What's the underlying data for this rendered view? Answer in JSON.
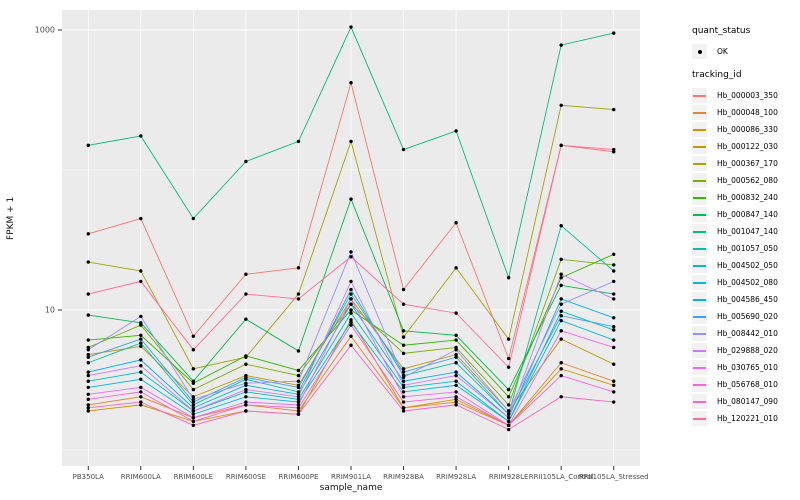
{
  "figure": {
    "background": "#FFFFFF",
    "panel_background": "#EBEBEB",
    "gridline_color": "#FFFFFF",
    "tick_text_color": "#4D4D4D",
    "point_color": "#000000"
  },
  "axes": {
    "y_title": "FPKM + 1",
    "x_title": "sample_name",
    "y_ticks": [
      10,
      1000
    ],
    "y_tick_labels": [
      "10",
      "1000"
    ],
    "y_minor_ticks": [
      1,
      100
    ]
  },
  "legend": {
    "quant_status_title": "quant_status",
    "ok_label": "OK",
    "tracking_title": "tracking_id"
  },
  "chart_data": {
    "type": "line",
    "x_type": "categorical",
    "y_scale": "log10",
    "title": "",
    "xlabel": "sample_name",
    "ylabel": "FPKM + 1",
    "ylim": [
      1,
      1100
    ],
    "grid": true,
    "legend_position": "right",
    "point_marker": {
      "shape": "circle",
      "color": "#000000",
      "label": "OK"
    },
    "categories": [
      "PB350LA",
      "RRIM600LA",
      "RRIM600LE",
      "RRIM600SE",
      "RRIM600PE",
      "RRIM901LA",
      "RRIM928BA",
      "RRIM928LA",
      "RRIM928LE",
      "RRII105LA_Control",
      "RRII105LA_Stressed"
    ],
    "series": [
      {
        "name": "Hb_000003_350",
        "color": "#F8766D",
        "values": [
          35,
          45,
          6.5,
          18,
          20,
          420,
          14,
          42,
          4.5,
          150,
          135
        ]
      },
      {
        "name": "Hb_000048_100",
        "color": "#EA8331",
        "values": [
          2.1,
          2.4,
          1.7,
          2.1,
          1.9,
          6.5,
          2.0,
          2.2,
          1.5,
          4.2,
          3.1
        ]
      },
      {
        "name": "Hb_000086_330",
        "color": "#D89000",
        "values": [
          1.9,
          2.1,
          1.6,
          1.9,
          1.8,
          8.5,
          2.0,
          2.3,
          1.5,
          3.8,
          2.9
        ]
      },
      {
        "name": "Hb_000122_030",
        "color": "#C09B00",
        "values": [
          4.8,
          5.5,
          2.4,
          3.4,
          2.9,
          12,
          3.8,
          4.8,
          1.9,
          6.2,
          4.1
        ]
      },
      {
        "name": "Hb_000367_170",
        "color": "#A3A500",
        "values": [
          22,
          19,
          3.8,
          4.6,
          13,
          160,
          6.4,
          20,
          6.2,
          290,
          270
        ]
      },
      {
        "name": "Hb_000562_080",
        "color": "#7CAE00",
        "values": [
          5.4,
          7.8,
          2.7,
          4.1,
          3.4,
          11,
          4.9,
          5.4,
          2.1,
          23,
          21
        ]
      },
      {
        "name": "Hb_000832_240",
        "color": "#39B600",
        "values": [
          6.1,
          6.6,
          3.0,
          4.7,
          3.7,
          10,
          5.6,
          6.1,
          2.4,
          17,
          25
        ]
      },
      {
        "name": "Hb_000847_140",
        "color": "#00BB4E",
        "values": [
          9.2,
          8.1,
          3.1,
          8.6,
          5.1,
          62,
          7.1,
          6.6,
          2.7,
          15,
          13
        ]
      },
      {
        "name": "Hb_001047_140",
        "color": "#00BF7D",
        "values": [
          150,
          175,
          45,
          115,
          160,
          1050,
          140,
          190,
          17,
          780,
          950
        ]
      },
      {
        "name": "Hb_001057_050",
        "color": "#00C1A3",
        "values": [
          4.2,
          5.8,
          2.1,
          3.2,
          2.6,
          14,
          3.4,
          4.2,
          1.8,
          40,
          19
        ]
      },
      {
        "name": "Hb_004502_050",
        "color": "#00BFC4",
        "values": [
          3.1,
          3.6,
          1.9,
          2.6,
          2.3,
          9.5,
          2.8,
          3.1,
          1.6,
          9.8,
          7.2
        ]
      },
      {
        "name": "Hb_004502_080",
        "color": "#00BAE0",
        "values": [
          2.8,
          3.2,
          1.8,
          2.4,
          2.2,
          8.2,
          2.6,
          2.9,
          1.6,
          8.4,
          6.1
        ]
      },
      {
        "name": "Hb_004586_450",
        "color": "#00B0F6",
        "values": [
          3.6,
          4.4,
          2.0,
          2.9,
          2.5,
          11,
          3.1,
          3.6,
          1.7,
          12,
          8.8
        ]
      },
      {
        "name": "Hb_005690_020",
        "color": "#35A2FF",
        "values": [
          4.6,
          6.2,
          2.2,
          3.3,
          2.8,
          13,
          3.6,
          4.6,
          1.8,
          9.1,
          7.6
        ]
      },
      {
        "name": "Hb_008442_010",
        "color": "#9590FF",
        "values": [
          5.2,
          9.0,
          2.3,
          3.0,
          3.1,
          26,
          3.3,
          5.2,
          1.9,
          11,
          16
        ]
      },
      {
        "name": "Hb_029888_020",
        "color": "#C77CFF",
        "values": [
          3.4,
          4.0,
          1.9,
          2.7,
          2.4,
          16,
          2.9,
          3.4,
          1.7,
          18,
          12
        ]
      },
      {
        "name": "Hb_030765_010",
        "color": "#E76BF3",
        "values": [
          2.5,
          2.8,
          1.7,
          2.2,
          2.1,
          12,
          2.4,
          2.6,
          1.5,
          7.1,
          5.4
        ]
      },
      {
        "name": "Hb_056768_010",
        "color": "#FA62DB",
        "values": [
          2.3,
          2.6,
          1.6,
          2.1,
          2.0,
          7.8,
          2.2,
          2.4,
          1.5,
          3.4,
          2.6
        ]
      },
      {
        "name": "Hb_080147_090",
        "color": "#FF62BC",
        "values": [
          2.0,
          2.2,
          1.5,
          1.9,
          1.8,
          5.6,
          1.9,
          2.1,
          1.4,
          2.4,
          2.2
        ]
      },
      {
        "name": "Hb_120221_010",
        "color": "#FF6A98",
        "values": [
          13,
          16,
          5.2,
          13,
          12,
          24,
          11,
          9.5,
          3.9,
          150,
          140
        ]
      }
    ]
  }
}
